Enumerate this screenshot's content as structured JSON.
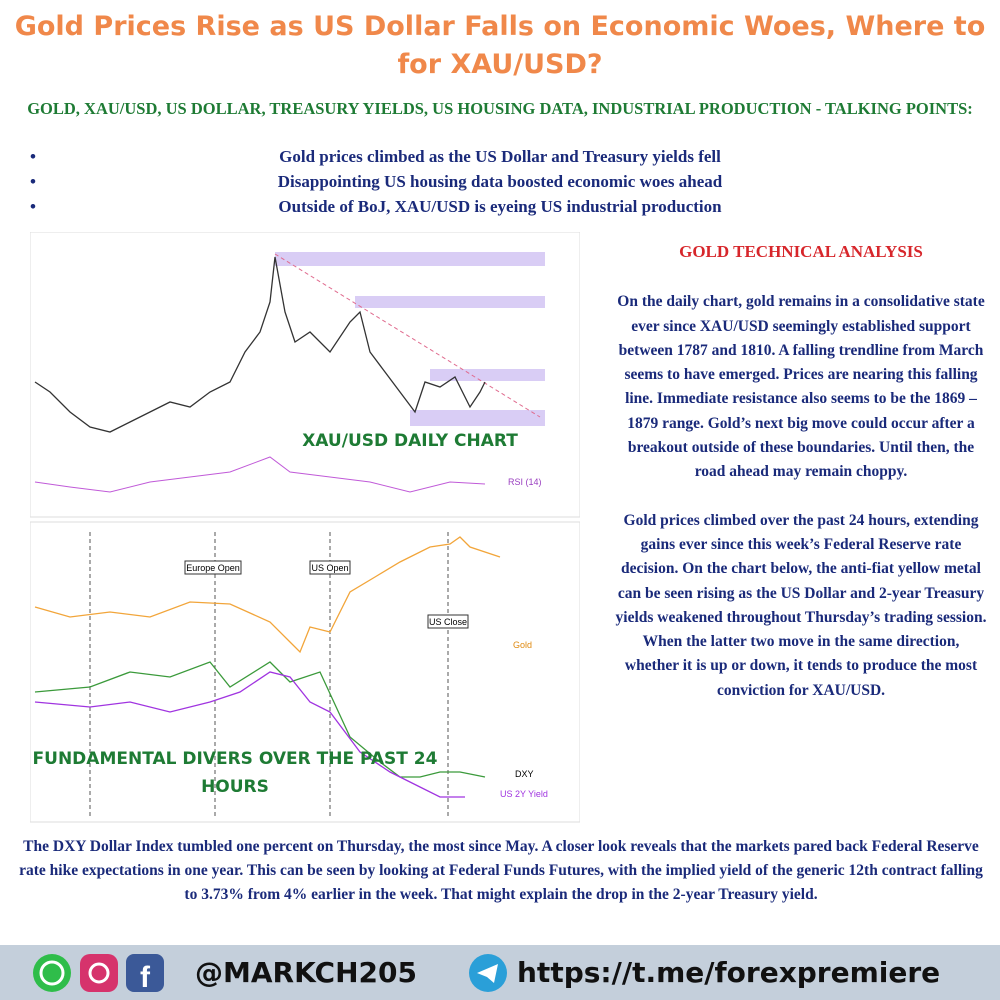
{
  "header": {
    "title": "Gold Prices Rise as US Dollar Falls on Economic Woes, Where to for XAU/USD?",
    "subtitle": "GOLD, XAU/USD, US DOLLAR, TREASURY YIELDS, US HOUSING DATA, INDUSTRIAL PRODUCTION - TALKING POINTS:"
  },
  "bullets": [
    "Gold prices climbed as the US Dollar and Treasury yields fell",
    "Disappointing US housing data boosted economic woes ahead",
    "Outside of BoJ, XAU/USD is eyeing US industrial production"
  ],
  "charts": {
    "daily": {
      "label": "XAU/USD DAILY CHART",
      "indicator": "RSI (14)"
    },
    "intraday": {
      "label": "FUNDAMENTAL DIVERS OVER THE PAST 24 HOURS",
      "markers": [
        "Europe Open",
        "US Open",
        "US Close"
      ],
      "legend": [
        "Gold",
        "DXY",
        "US 2Y Yield"
      ]
    }
  },
  "analysis": {
    "heading": "GOLD TECHNICAL ANALYSIS",
    "paragraphs": [
      "On the daily chart, gold remains in a consolidative state ever since XAU/USD seemingly established support between 1787 and 1810. A falling trendline from March seems to have emerged. Prices are nearing this falling line. Immediate resistance also seems to be the 1869 – 1879 range. Gold’s next big move could occur after a breakout outside of these boundaries. Until then, the road ahead may remain choppy.",
      "Gold prices climbed over the past 24 hours, extending gains ever since this week’s Federal Reserve rate decision. On the chart below, the anti-fiat yellow metal can be seen rising as the US Dollar and 2-year Treasury yields weakened throughout Thursday’s trading session. When the latter two move in the same direction, whether it is up or down, it tends to produce the most conviction for XAU/USD."
    ]
  },
  "body": {
    "paragraph": "The DXY Dollar Index tumbled one percent on Thursday, the most since May. A closer look reveals that the markets pared back Federal Reserve rate hike expectations in one year. This can be seen by looking at Federal Funds Futures, with the implied yield of the generic 12th contract falling to 3.73% from 4% earlier in the week. That might explain the drop in the 2-year Treasury yield."
  },
  "footer": {
    "handle": "@MARKCH205",
    "link": "https://t.me/forexpremiere"
  }
}
